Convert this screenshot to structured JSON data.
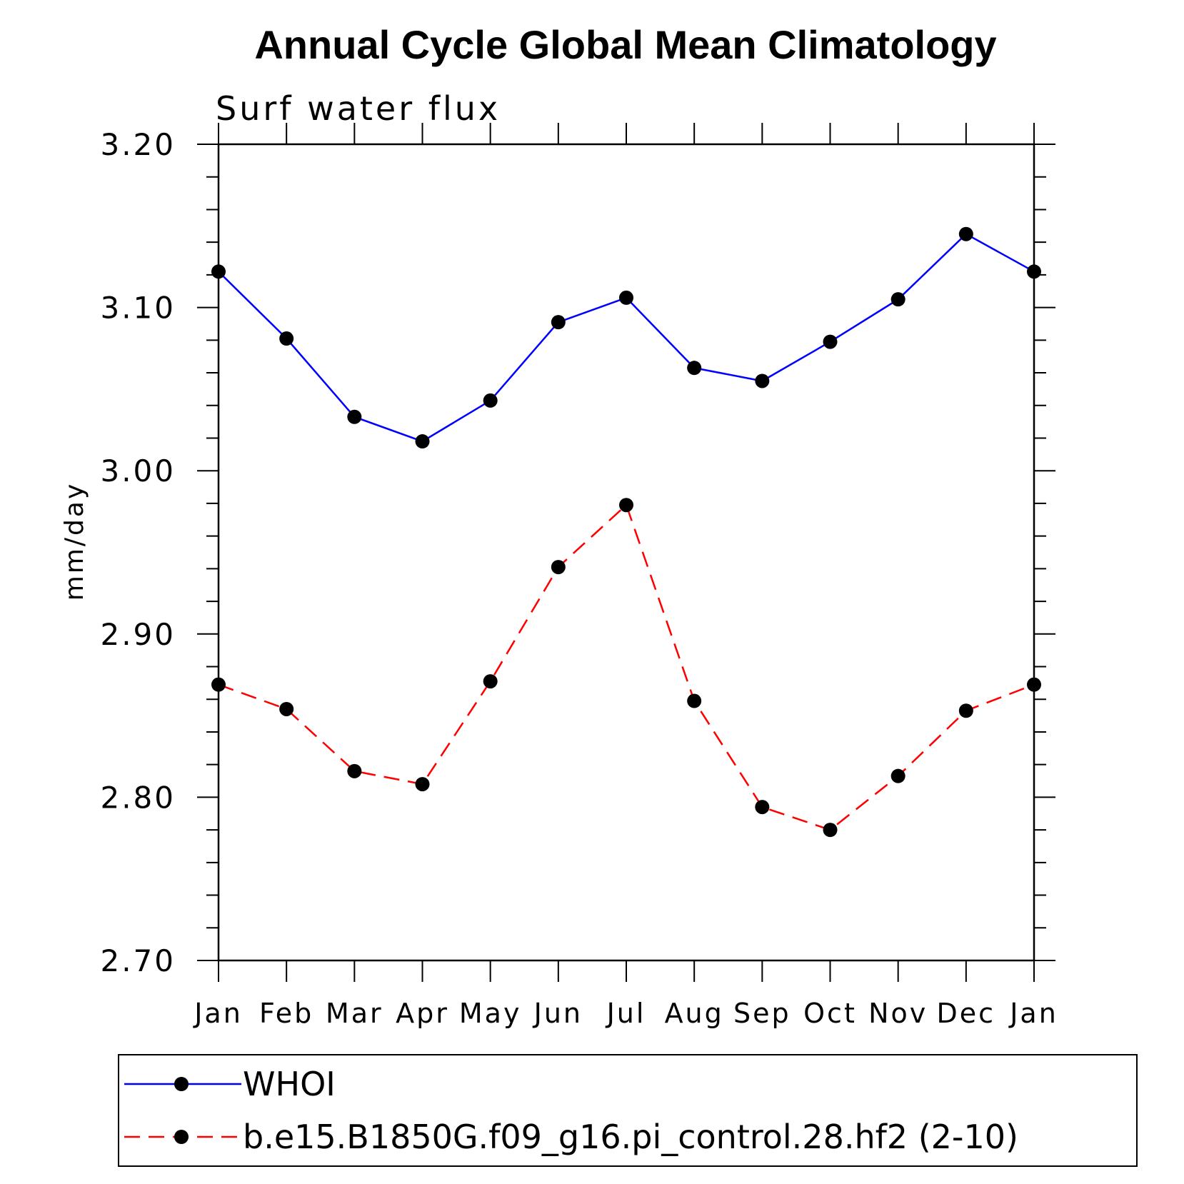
{
  "chart_data": {
    "type": "line",
    "title": "Annual Cycle Global Mean Climatology",
    "subtitle": "Surf water flux",
    "xlabel": "",
    "ylabel": "mm/day",
    "categories": [
      "Jan",
      "Feb",
      "Mar",
      "Apr",
      "May",
      "Jun",
      "Jul",
      "Aug",
      "Sep",
      "Oct",
      "Nov",
      "Dec",
      "Jan"
    ],
    "ylim": [
      2.7,
      3.2
    ],
    "yticks": [
      "2.70",
      "2.80",
      "2.90",
      "3.00",
      "3.10",
      "3.20"
    ],
    "grid": false,
    "legend_position": "bottom",
    "series": [
      {
        "name": "WHOI",
        "color": "#0000ff",
        "dash": "solid",
        "values": [
          3.122,
          3.081,
          3.033,
          3.018,
          3.043,
          3.091,
          3.106,
          3.063,
          3.055,
          3.079,
          3.105,
          3.145,
          3.122
        ]
      },
      {
        "name": "b.e15.B1850G.f09_g16.pi_control.28.hf2 (2-10)",
        "color": "#ff0000",
        "dash": "dashed",
        "values": [
          2.869,
          2.854,
          2.816,
          2.808,
          2.871,
          2.941,
          2.979,
          2.859,
          2.794,
          2.78,
          2.813,
          2.853,
          2.869
        ]
      }
    ]
  }
}
